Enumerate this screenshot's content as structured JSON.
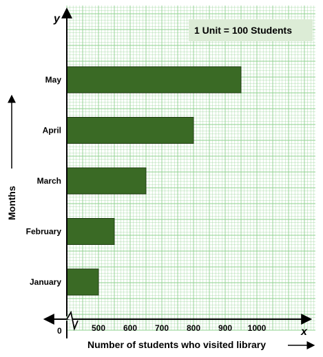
{
  "chart_data": {
    "type": "bar",
    "orientation": "horizontal",
    "categories": [
      "January",
      "February",
      "March",
      "April",
      "May"
    ],
    "values": [
      500,
      550,
      650,
      800,
      950
    ],
    "xlabel": "Number of students who visited library",
    "ylabel": "Months",
    "x_axis_letter": "x",
    "y_axis_letter": "y",
    "origin_label": "0",
    "x_ticks": [
      500,
      600,
      700,
      800,
      900,
      1000
    ],
    "xlim": [
      400,
      1000
    ],
    "axis_break": true,
    "scale_note": "1 Unit = 100 Students",
    "grid": true,
    "bar_color": "#3a6a25",
    "grid_color": "#8ed08e"
  }
}
